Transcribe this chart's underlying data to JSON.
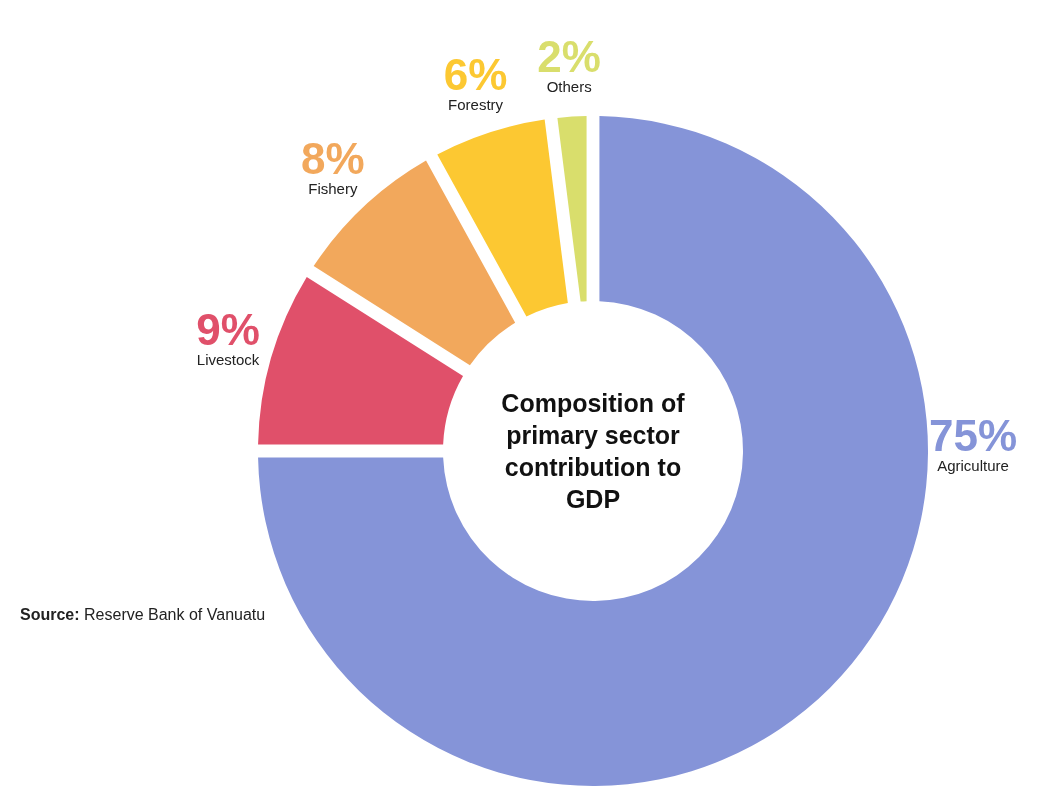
{
  "chart_data": {
    "type": "donut",
    "title": "Composition of primary sector contribution to GDP",
    "categories": [
      "Agriculture",
      "Livestock",
      "Fishery",
      "Forestry",
      "Others"
    ],
    "values": [
      75,
      9,
      8,
      6,
      2
    ],
    "colors": [
      "#8594d8",
      "#e0506a",
      "#f2a85c",
      "#fcc832",
      "#d9de6c"
    ],
    "value_labels": [
      "75%",
      "9%",
      "8%",
      "6%",
      "2%"
    ],
    "annotations": [
      "Source: Reserve Bank of Vanuatu"
    ]
  }
}
